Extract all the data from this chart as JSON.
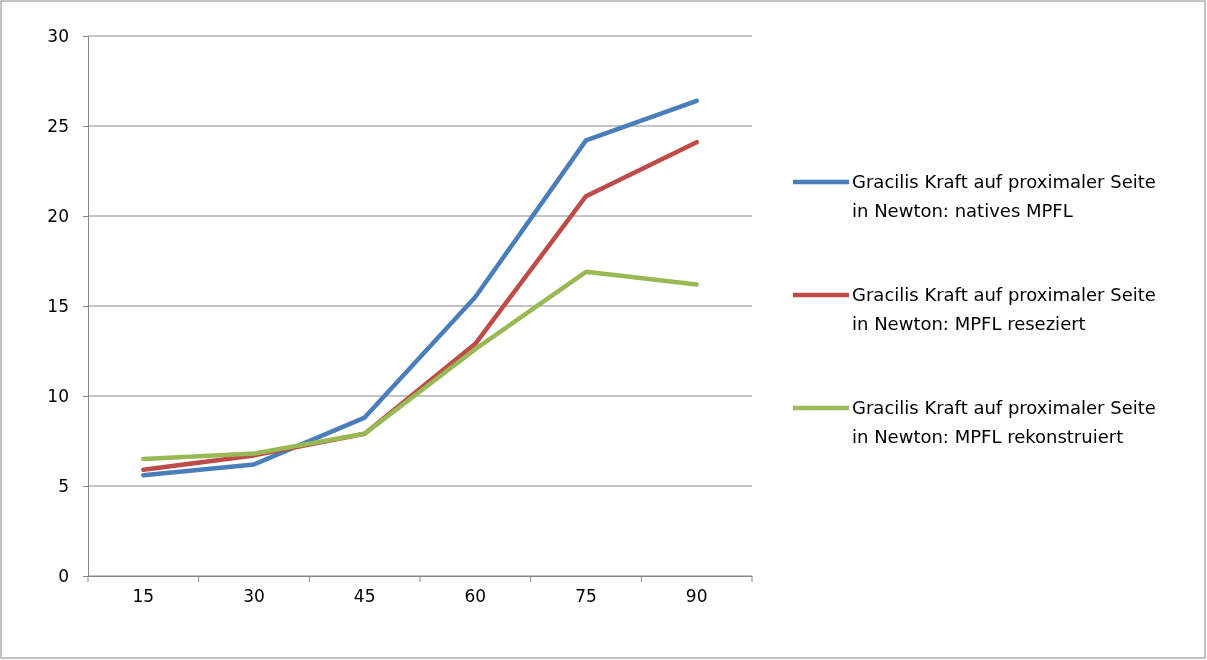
{
  "chart_data": {
    "type": "line",
    "categories": [
      "15",
      "30",
      "45",
      "60",
      "75",
      "90"
    ],
    "series": [
      {
        "name": "Gracilis Kraft auf proximaler Seite in Newton: natives MPFL",
        "color": "#4a7ebb",
        "values": [
          5.6,
          6.2,
          8.8,
          15.5,
          24.2,
          26.4
        ]
      },
      {
        "name": "Gracilis Kraft auf proximaler Seite in Newton: MPFL reseziert",
        "color": "#be4b48",
        "values": [
          5.9,
          6.7,
          7.9,
          12.9,
          21.1,
          24.1
        ]
      },
      {
        "name": "Gracilis Kraft auf proximaler Seite in Newton: MPFL rekonstruiert",
        "color": "#98b954",
        "values": [
          6.5,
          6.8,
          7.9,
          12.6,
          16.9,
          16.2
        ]
      }
    ],
    "ylim": [
      0,
      30
    ],
    "yticks": [
      0,
      5,
      10,
      15,
      20,
      25,
      30
    ],
    "grid": "y",
    "legend": "right",
    "marker": "none",
    "line_style": "solid"
  }
}
